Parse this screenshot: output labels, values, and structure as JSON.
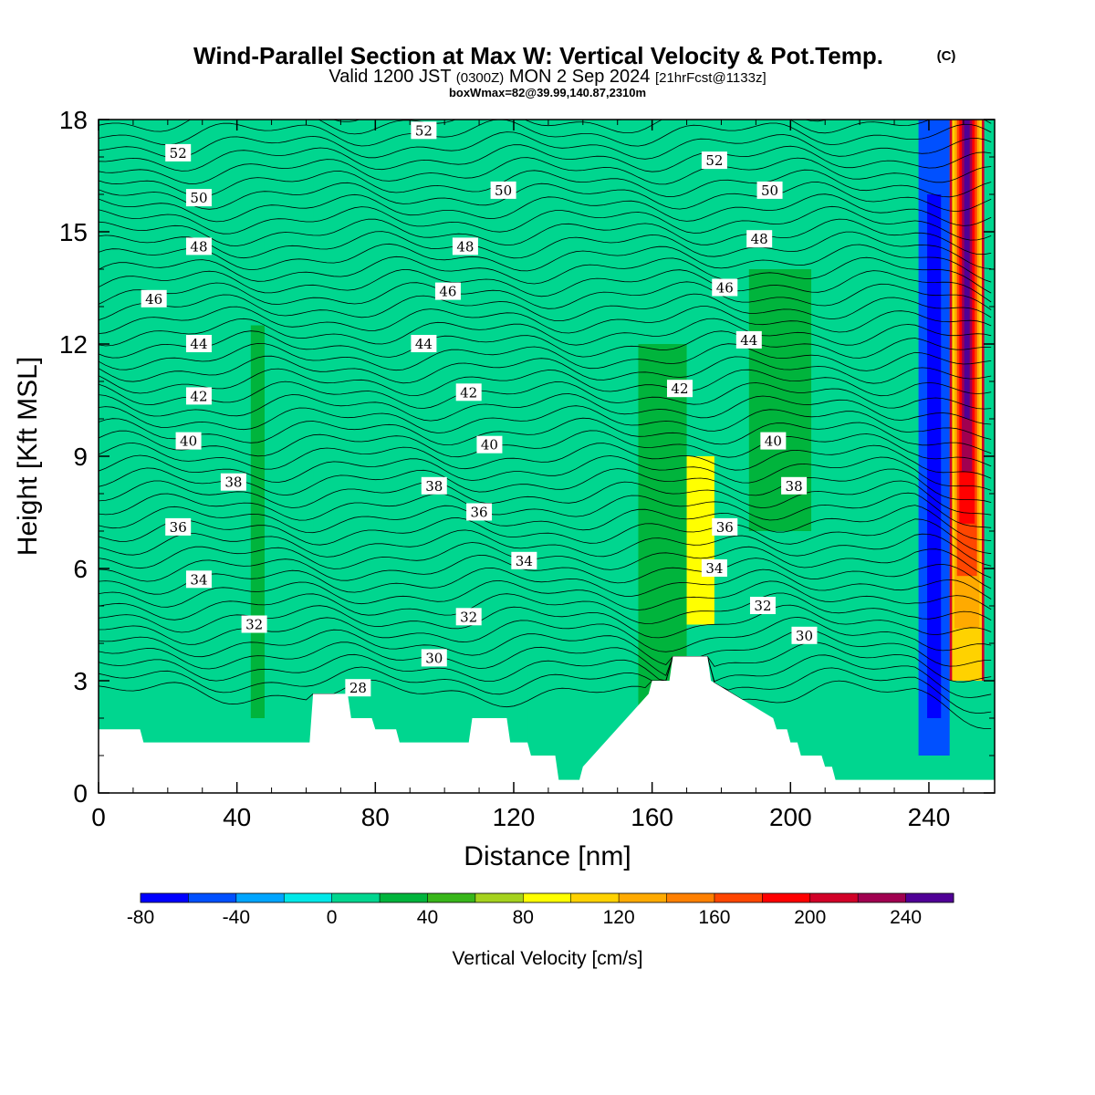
{
  "chart_data": {
    "type": "heatmap",
    "title": "Wind-Parallel Section at Max W: Vertical Velocity & Pot.Temp.",
    "copyright": "(C)",
    "subtitle": {
      "main_a": "Valid 1200 JST",
      "utc": "(0300Z)",
      "main_b": "MON 2 Sep 2024",
      "run": "[21hrFcst@1133z]"
    },
    "info_line": "boxWmax=82@39.99,140.87,2310m",
    "xlabel": "Distance [nm]",
    "ylabel": "Height [Kft MSL]",
    "xlim": [
      0,
      259
    ],
    "ylim": [
      0,
      18
    ],
    "x_ticks": [
      0,
      40,
      80,
      120,
      160,
      200,
      240
    ],
    "y_ticks": [
      0,
      3,
      6,
      9,
      12,
      15,
      18
    ],
    "grid": false,
    "colorbar": {
      "label": "Vertical Velocity [cm/s]",
      "levels": [
        -80,
        -60,
        -40,
        -20,
        0,
        20,
        40,
        60,
        80,
        100,
        120,
        140,
        160,
        180,
        200,
        220,
        240,
        260
      ],
      "colors": [
        "#0000ff",
        "#0050ff",
        "#00a5ff",
        "#00e8e8",
        "#00d68f",
        "#00b43c",
        "#38b61a",
        "#a5d21e",
        "#ffff00",
        "#ffd200",
        "#ffaa00",
        "#ff8000",
        "#ff4600",
        "#ff0000",
        "#d20028",
        "#a00050",
        "#500096"
      ],
      "tick_labels": [
        -80,
        -40,
        0,
        40,
        80,
        120,
        160,
        200,
        240
      ]
    },
    "terrain_profile_kft": {
      "x": [
        0,
        12,
        13,
        61,
        62,
        72,
        73,
        79,
        80,
        86,
        87,
        91,
        92,
        107,
        108,
        118,
        119,
        124,
        125,
        132,
        133,
        139,
        140,
        159,
        160,
        165,
        166,
        176,
        177,
        195,
        196,
        199,
        200,
        202,
        203,
        209,
        210,
        212,
        213,
        259
      ],
      "height": [
        1.7,
        1.7,
        1.35,
        1.35,
        2.65,
        2.65,
        2.0,
        2.0,
        1.7,
        1.7,
        1.35,
        1.35,
        1.35,
        1.35,
        2.0,
        2.0,
        1.35,
        1.35,
        1.0,
        1.0,
        0.35,
        0.35,
        0.7,
        2.65,
        3.0,
        3.0,
        3.65,
        3.65,
        3.0,
        2.0,
        1.7,
        1.7,
        1.35,
        1.35,
        1.0,
        1.0,
        0.7,
        0.7,
        0.35,
        0.35
      ]
    },
    "vertical_velocity_field": {
      "background_cm_s": 10,
      "regions": [
        {
          "x0": 0,
          "x1": 18,
          "z0": 4.5,
          "z1": 18,
          "w": 0
        },
        {
          "x0": 44,
          "x1": 48,
          "z0": 2,
          "z1": 12.5,
          "w": 20
        },
        {
          "x0": 48,
          "x1": 62,
          "z0": 5,
          "z1": 18,
          "w": 0
        },
        {
          "x0": 84,
          "x1": 118,
          "z0": 9,
          "z1": 18,
          "w": 0
        },
        {
          "x0": 124,
          "x1": 134,
          "z0": 1,
          "z1": 7,
          "w": 0
        },
        {
          "x0": 156,
          "x1": 170,
          "z0": 1.5,
          "z1": 12,
          "w": 20
        },
        {
          "x0": 170,
          "x1": 178,
          "z0": 4.5,
          "z1": 9,
          "w": 80
        },
        {
          "x0": 188,
          "x1": 206,
          "z0": 7,
          "z1": 14,
          "w": 30
        },
        {
          "x0": 237,
          "x1": 246,
          "z0": 1,
          "z1": 18,
          "w": -60
        },
        {
          "x0": 246,
          "x1": 256,
          "z0": 3,
          "z1": 18,
          "w": 200
        }
      ],
      "max_w_cm_s": 250
    },
    "theta_contours": {
      "levels": [
        28,
        30,
        32,
        34,
        36,
        38,
        40,
        42,
        44,
        46,
        48,
        50,
        52
      ],
      "labels": [
        "28",
        "30",
        "32",
        "34",
        "36",
        "38",
        "40",
        "42",
        "44",
        "46",
        "48",
        "50",
        "52"
      ]
    }
  }
}
